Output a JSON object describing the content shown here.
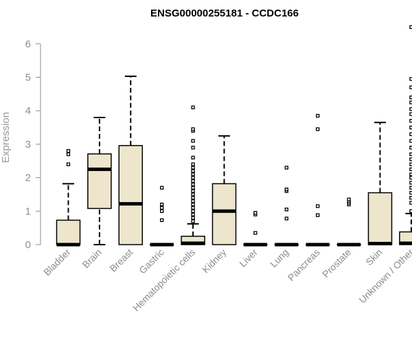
{
  "chart_data": {
    "type": "boxplot",
    "title": "ENSG00000255181 - CCDC166",
    "xlabel": "",
    "ylabel": "Expression",
    "ylim": [
      0,
      6.6
    ],
    "yticks": [
      0,
      1,
      2,
      3,
      4,
      5,
      6
    ],
    "grid": false,
    "legend": "none",
    "box_color": "#ede6cc",
    "categories": [
      "Bladder",
      "Brain",
      "Breast",
      "Gastric",
      "Hematopoietic cells",
      "Kidney",
      "Liver",
      "Lung",
      "Pancreas",
      "Prostate",
      "Skin",
      "Unknown / Other"
    ],
    "boxes": [
      {
        "min": 0,
        "q1": 0,
        "median": 0,
        "q3": 0.73,
        "max": 1.82,
        "outliers": [
          2.4,
          2.7,
          2.8
        ]
      },
      {
        "min": 0,
        "q1": 1.08,
        "median": 2.25,
        "q3": 2.71,
        "max": 3.8,
        "outliers": []
      },
      {
        "min": 0,
        "q1": 0,
        "median": 1.22,
        "q3": 2.96,
        "max": 5.03,
        "outliers": []
      },
      {
        "min": 0,
        "q1": 0,
        "median": 0,
        "q3": 0,
        "max": 0,
        "outliers": [
          0.73,
          1.0,
          1.1,
          1.2,
          1.7
        ]
      },
      {
        "min": 0,
        "q1": 0,
        "median": 0.04,
        "q3": 0.25,
        "max": 0.62,
        "outliers": [
          0.7,
          0.8,
          0.9,
          1.0,
          1.1,
          1.2,
          1.3,
          1.4,
          1.5,
          1.6,
          1.7,
          1.8,
          1.9,
          2.0,
          2.1,
          2.2,
          2.3,
          2.4,
          2.6,
          2.9,
          3.1,
          3.4,
          3.45,
          4.1
        ]
      },
      {
        "min": 0,
        "q1": 0,
        "median": 1.0,
        "q3": 1.82,
        "max": 3.25,
        "outliers": []
      },
      {
        "min": 0,
        "q1": 0,
        "median": 0,
        "q3": 0,
        "max": 0,
        "outliers": [
          0.35,
          0.9,
          0.95
        ]
      },
      {
        "min": 0,
        "q1": 0,
        "median": 0,
        "q3": 0,
        "max": 0,
        "outliers": [
          0.78,
          1.05,
          1.6,
          1.65,
          2.3
        ]
      },
      {
        "min": 0,
        "q1": 0,
        "median": 0,
        "q3": 0,
        "max": 0,
        "outliers": [
          0.88,
          1.15,
          3.45,
          3.85
        ]
      },
      {
        "min": 0,
        "q1": 0,
        "median": 0,
        "q3": 0,
        "max": 0,
        "outliers": [
          1.2,
          1.25,
          1.3,
          1.35
        ]
      },
      {
        "min": 0,
        "q1": 0,
        "median": 0.03,
        "q3": 1.55,
        "max": 3.65,
        "outliers": []
      },
      {
        "min": 0,
        "q1": 0,
        "median": 0.04,
        "q3": 0.38,
        "max": 0.93,
        "outliers": [
          1.0,
          1.25,
          1.4,
          1.55,
          1.7,
          1.85,
          2.0,
          2.1,
          2.25,
          2.4,
          2.55,
          2.7,
          2.9,
          3.1,
          3.3,
          3.5,
          3.7,
          3.9,
          4.05,
          4.25,
          4.4,
          4.7,
          4.95,
          6.5
        ]
      }
    ]
  }
}
